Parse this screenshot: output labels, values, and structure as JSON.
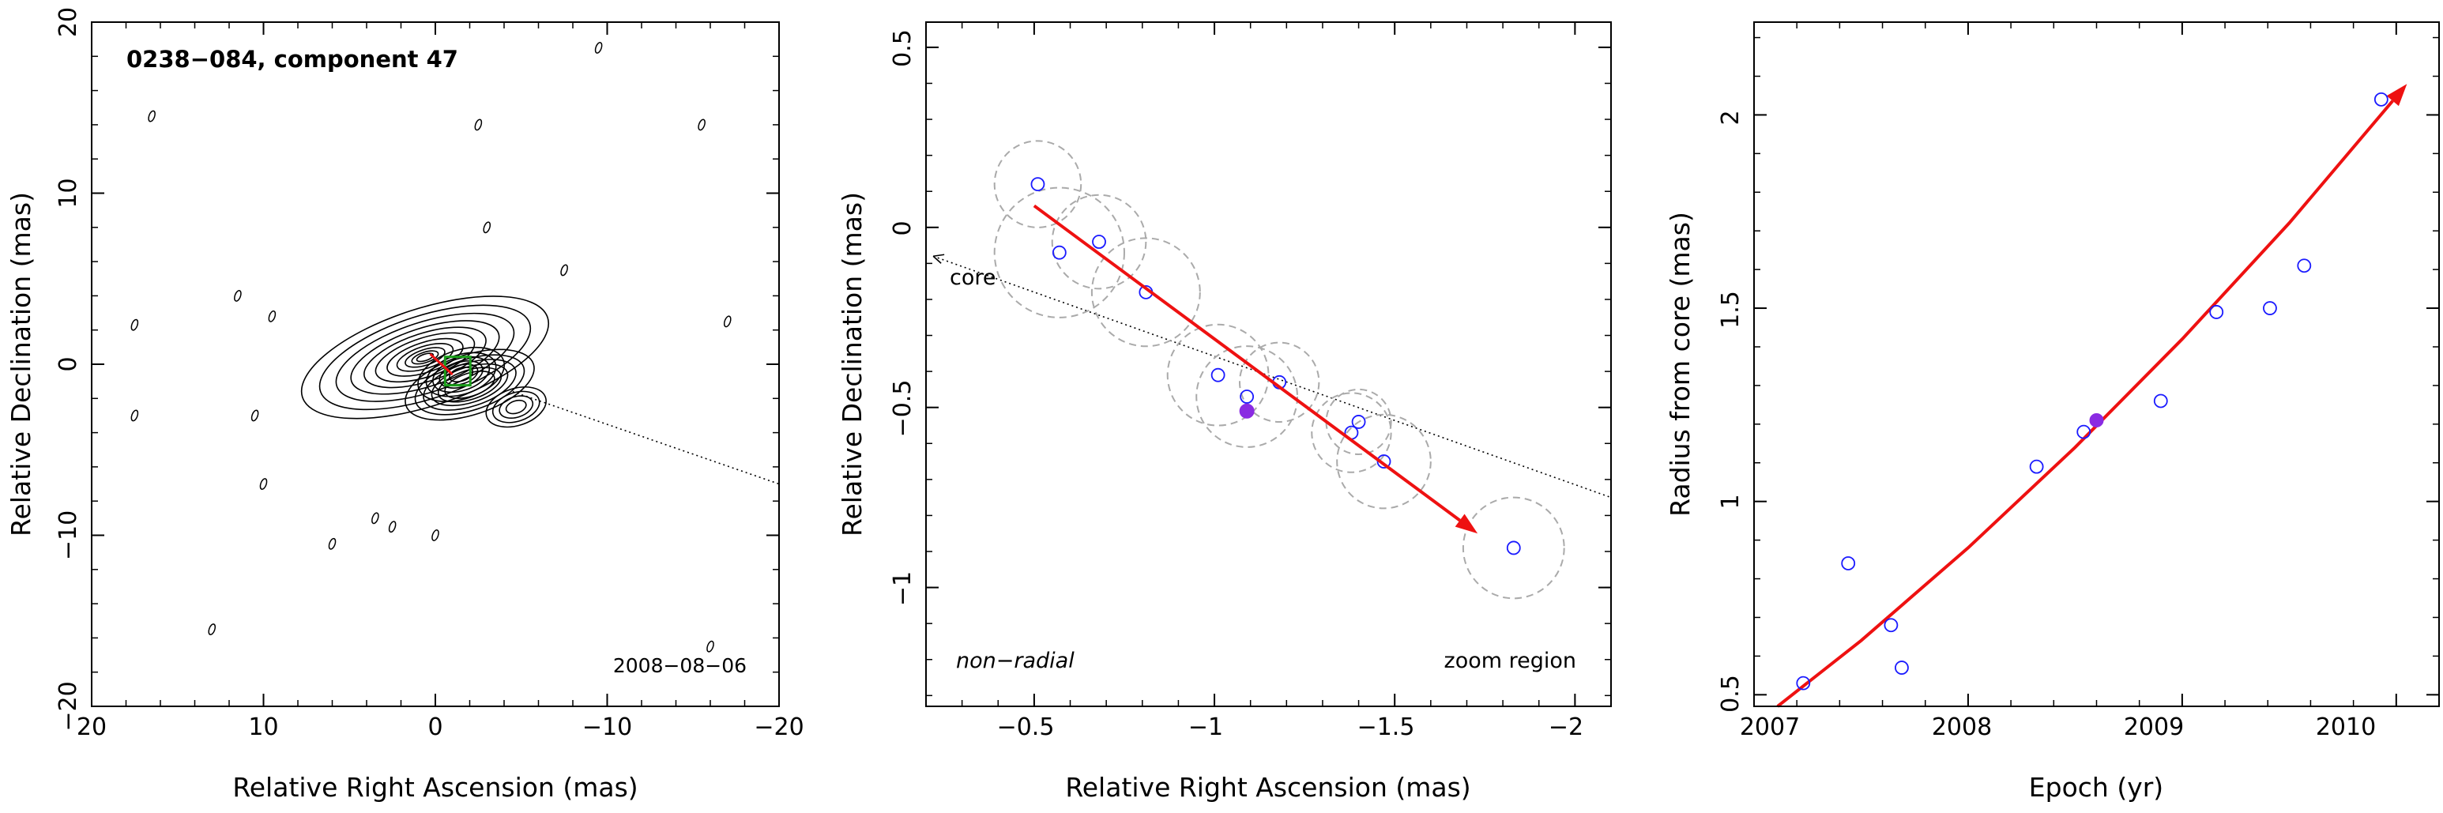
{
  "panel_left": {
    "title": "0238−084, component 47",
    "date": "2008−08−06",
    "xlabel": "Relative Right Ascension (mas)",
    "ylabel": "Relative Declination (mas)",
    "xticks": [
      "20",
      "10",
      "0",
      "−10",
      "−20"
    ],
    "yticks": [
      "20",
      "10",
      "0",
      "−10",
      "−20"
    ]
  },
  "panel_mid": {
    "core_label": "core",
    "mode_label": "non−radial",
    "zoom_label": "zoom region",
    "xlabel": "Relative Right Ascension (mas)",
    "ylabel": "Relative Declination (mas)",
    "xticks": [
      "−0.5",
      "−1",
      "−1.5",
      "−2"
    ],
    "yticks": [
      "0.5",
      "0",
      "−0.5",
      "−1"
    ]
  },
  "panel_right": {
    "xlabel": "Epoch (yr)",
    "ylabel": "Radius from core (mas)",
    "xticks": [
      "2007",
      "2008",
      "2009",
      "2010"
    ],
    "yticks": [
      "0.5",
      "1",
      "1.5",
      "2"
    ]
  },
  "colors": {
    "points": "#1a1aff",
    "highlight": "#8a2be2",
    "arrow": "#ee1111",
    "circles": "#aaaaaa",
    "contours": "#000000"
  },
  "chart_data": [
    {
      "type": "scatter",
      "subtype": "contour-map",
      "title": "0238−084, component 47",
      "annotation": "2008−08−06",
      "xlabel": "Relative Right Ascension (mas)",
      "ylabel": "Relative Declination (mas)",
      "xlim": [
        20,
        -20
      ],
      "ylim": [
        -20,
        20
      ],
      "x_reversed": true,
      "jet_direction_line": {
        "x": [
          0,
          -20
        ],
        "y": [
          0,
          -7
        ]
      },
      "isolated_contours": [
        {
          "x": 16.5,
          "y": 14.5
        },
        {
          "x": -15.5,
          "y": 14
        },
        {
          "x": -2.5,
          "y": 14
        },
        {
          "x": -3,
          "y": 8
        },
        {
          "x": 11.5,
          "y": 4
        },
        {
          "x": 9.5,
          "y": 2.8
        },
        {
          "x": 17.5,
          "y": 2.3
        },
        {
          "x": -7.5,
          "y": 5.5
        },
        {
          "x": -17,
          "y": 2.5
        },
        {
          "x": 17.5,
          "y": -3
        },
        {
          "x": 10.5,
          "y": -3
        },
        {
          "x": 10,
          "y": -7
        },
        {
          "x": 3.5,
          "y": -9
        },
        {
          "x": 2.5,
          "y": -9.5
        },
        {
          "x": 0,
          "y": -10
        },
        {
          "x": 6,
          "y": -10.5
        },
        {
          "x": 13,
          "y": -15.5
        },
        {
          "x": -16,
          "y": -16.5
        },
        {
          "x": -9.5,
          "y": 18.5
        }
      ]
    },
    {
      "type": "scatter",
      "title": "",
      "xlabel": "Relative Right Ascension (mas)",
      "ylabel": "Relative Declination (mas)",
      "xlim": [
        -0.2,
        -2.1
      ],
      "ylim": [
        -1.33,
        0.57
      ],
      "x_reversed": true,
      "points": [
        {
          "x": -0.51,
          "y": 0.12,
          "r": 0.12
        },
        {
          "x": -0.57,
          "y": -0.07,
          "r": 0.18
        },
        {
          "x": -0.68,
          "y": -0.04,
          "r": 0.13
        },
        {
          "x": -0.81,
          "y": -0.18,
          "r": 0.15
        },
        {
          "x": -1.01,
          "y": -0.41,
          "r": 0.14
        },
        {
          "x": -1.09,
          "y": -0.47,
          "r": 0.14
        },
        {
          "x": -1.18,
          "y": -0.43,
          "r": 0.11
        },
        {
          "x": -1.38,
          "y": -0.57,
          "r": 0.11
        },
        {
          "x": -1.4,
          "y": -0.54,
          "r": 0.09
        },
        {
          "x": -1.47,
          "y": -0.65,
          "r": 0.13
        },
        {
          "x": -1.83,
          "y": -0.89,
          "r": 0.14
        }
      ],
      "highlight_point": {
        "x": -1.09,
        "y": -0.51
      },
      "fit_arrow": {
        "x": [
          -0.5,
          -1.73
        ],
        "y": [
          0.06,
          -0.85
        ]
      },
      "core_direction_line": {
        "x": [
          -0.22,
          -2.1
        ],
        "y": [
          -0.08,
          -0.75
        ]
      },
      "core_label": "core",
      "annotations": [
        "non−radial",
        "zoom region"
      ]
    },
    {
      "type": "scatter",
      "title": "",
      "xlabel": "Epoch (yr)",
      "ylabel": "Radius from core (mas)",
      "xlim": [
        2007,
        2010.2
      ],
      "ylim": [
        0.47,
        2.24
      ],
      "points": [
        {
          "x": 2007.23,
          "y": 0.53
        },
        {
          "x": 2007.44,
          "y": 0.84
        },
        {
          "x": 2007.64,
          "y": 0.68
        },
        {
          "x": 2007.69,
          "y": 0.57
        },
        {
          "x": 2008.32,
          "y": 1.09
        },
        {
          "x": 2008.54,
          "y": 1.18
        },
        {
          "x": 2008.9,
          "y": 1.26
        },
        {
          "x": 2009.16,
          "y": 1.49
        },
        {
          "x": 2009.41,
          "y": 1.5
        },
        {
          "x": 2009.57,
          "y": 1.61
        },
        {
          "x": 2009.93,
          "y": 2.04
        }
      ],
      "highlight_point": {
        "x": 2008.6,
        "y": 1.21
      },
      "fit_curve": {
        "x": [
          2007.11,
          2007.5,
          2008.0,
          2008.5,
          2009.0,
          2009.5,
          2010.05
        ],
        "y": [
          0.47,
          0.64,
          0.88,
          1.14,
          1.42,
          1.72,
          2.08
        ]
      }
    }
  ]
}
